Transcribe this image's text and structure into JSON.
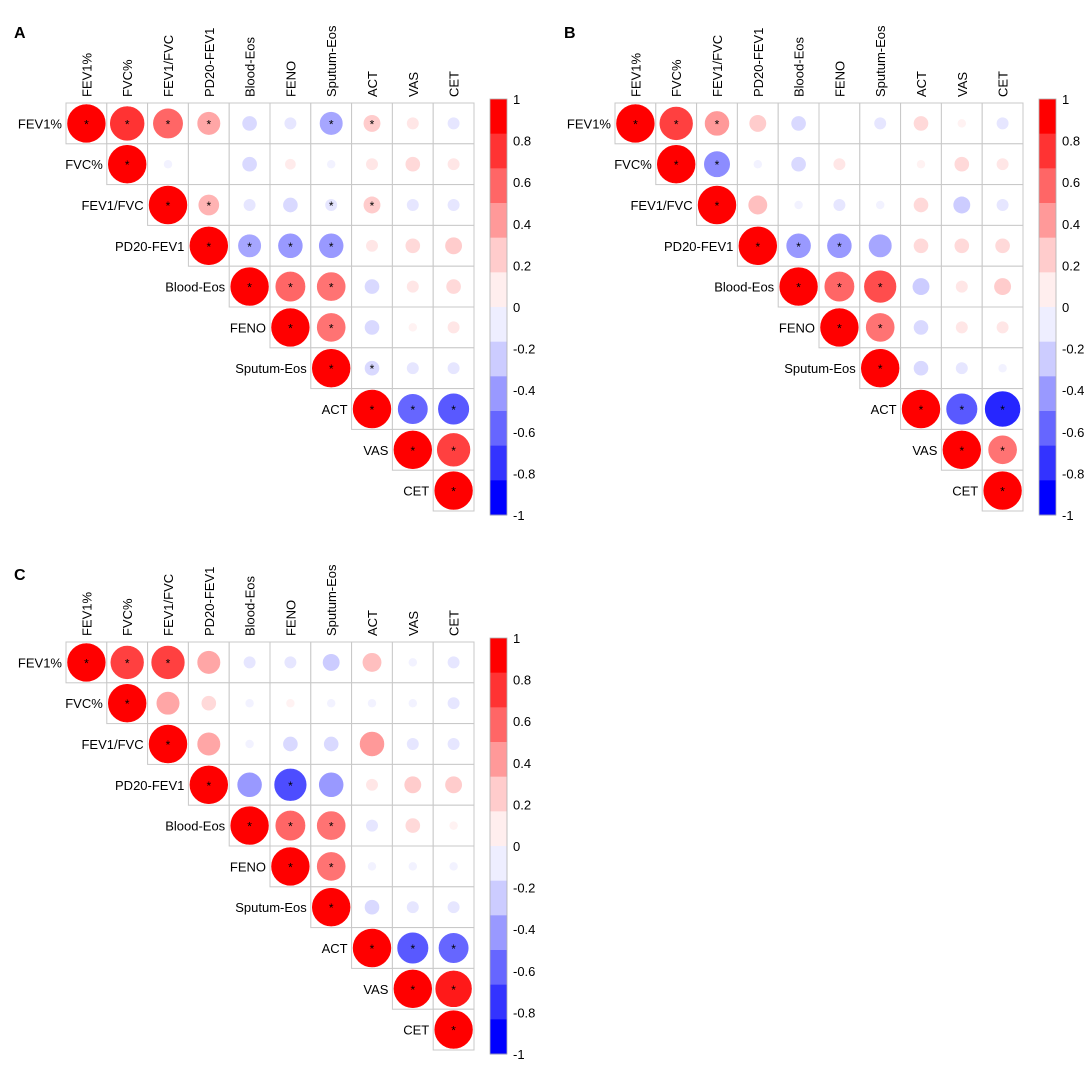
{
  "chart_data": [
    {
      "type": "heatmap",
      "panel": "A",
      "variables": [
        "FEV1%",
        "FVC%",
        "FEV1/FVC",
        "PD20-FEV1",
        "Blood-Eos",
        "FENO",
        "Sputum-Eos",
        "ACT",
        "VAS",
        "CET"
      ],
      "matrix_upper": [
        [
          1.0,
          0.8,
          0.6,
          0.35,
          -0.15,
          -0.1,
          -0.35,
          0.2,
          0.1,
          -0.1
        ],
        [
          null,
          1.0,
          -0.05,
          0.0,
          -0.15,
          0.08,
          -0.05,
          0.1,
          0.15,
          0.1
        ],
        [
          null,
          null,
          1.0,
          0.3,
          -0.1,
          -0.15,
          -0.1,
          0.2,
          -0.1,
          -0.1
        ],
        [
          null,
          null,
          null,
          1.0,
          -0.35,
          -0.4,
          -0.4,
          0.1,
          0.15,
          0.2
        ],
        [
          null,
          null,
          null,
          null,
          1.0,
          0.6,
          0.55,
          -0.15,
          0.1,
          0.15
        ],
        [
          null,
          null,
          null,
          null,
          null,
          1.0,
          0.55,
          -0.15,
          0.05,
          0.1
        ],
        [
          null,
          null,
          null,
          null,
          null,
          null,
          1.0,
          -0.15,
          -0.1,
          -0.1
        ],
        [
          null,
          null,
          null,
          null,
          null,
          null,
          null,
          1.0,
          -0.6,
          -0.65
        ],
        [
          null,
          null,
          null,
          null,
          null,
          null,
          null,
          null,
          1.0,
          0.75
        ],
        [
          null,
          null,
          null,
          null,
          null,
          null,
          null,
          null,
          null,
          1.0
        ]
      ],
      "significant": [
        [
          0,
          0
        ],
        [
          0,
          1
        ],
        [
          0,
          2
        ],
        [
          0,
          3
        ],
        [
          0,
          6
        ],
        [
          0,
          7
        ],
        [
          1,
          1
        ],
        [
          2,
          2
        ],
        [
          2,
          3
        ],
        [
          2,
          6
        ],
        [
          2,
          7
        ],
        [
          3,
          3
        ],
        [
          3,
          4
        ],
        [
          3,
          5
        ],
        [
          3,
          6
        ],
        [
          4,
          4
        ],
        [
          4,
          5
        ],
        [
          4,
          6
        ],
        [
          5,
          5
        ],
        [
          5,
          6
        ],
        [
          6,
          6
        ],
        [
          6,
          7
        ],
        [
          7,
          7
        ],
        [
          7,
          8
        ],
        [
          7,
          9
        ],
        [
          8,
          8
        ],
        [
          8,
          9
        ],
        [
          9,
          9
        ]
      ],
      "legend_ticks": [
        "1",
        "0.8",
        "0.6",
        "0.4",
        "0.2",
        "0",
        "-0.2",
        "-0.4",
        "-0.6",
        "-0.8",
        "-1"
      ],
      "range": [
        -1,
        1
      ]
    },
    {
      "type": "heatmap",
      "panel": "B",
      "variables": [
        "FEV1%",
        "FVC%",
        "FEV1/FVC",
        "PD20-FEV1",
        "Blood-Eos",
        "FENO",
        "Sputum-Eos",
        "ACT",
        "VAS",
        "CET"
      ],
      "matrix_upper": [
        [
          1.0,
          0.75,
          0.4,
          0.2,
          -0.15,
          0.0,
          -0.1,
          0.15,
          0.05,
          -0.1
        ],
        [
          null,
          1.0,
          -0.45,
          -0.05,
          -0.15,
          0.1,
          0.0,
          0.05,
          0.15,
          0.1
        ],
        [
          null,
          null,
          1.0,
          0.25,
          -0.05,
          -0.1,
          -0.05,
          0.15,
          -0.2,
          -0.1
        ],
        [
          null,
          null,
          null,
          1.0,
          -0.4,
          -0.4,
          -0.35,
          0.15,
          0.15,
          0.15
        ],
        [
          null,
          null,
          null,
          null,
          1.0,
          0.6,
          0.7,
          -0.2,
          0.1,
          0.2
        ],
        [
          null,
          null,
          null,
          null,
          null,
          1.0,
          0.55,
          -0.15,
          0.1,
          0.1
        ],
        [
          null,
          null,
          null,
          null,
          null,
          null,
          1.0,
          -0.15,
          -0.1,
          -0.05
        ],
        [
          null,
          null,
          null,
          null,
          null,
          null,
          null,
          1.0,
          -0.65,
          -0.85
        ],
        [
          null,
          null,
          null,
          null,
          null,
          null,
          null,
          null,
          1.0,
          0.55
        ],
        [
          null,
          null,
          null,
          null,
          null,
          null,
          null,
          null,
          null,
          1.0
        ]
      ],
      "significant": [
        [
          0,
          0
        ],
        [
          0,
          1
        ],
        [
          0,
          2
        ],
        [
          1,
          1
        ],
        [
          1,
          2
        ],
        [
          2,
          2
        ],
        [
          3,
          3
        ],
        [
          3,
          4
        ],
        [
          3,
          5
        ],
        [
          4,
          4
        ],
        [
          4,
          5
        ],
        [
          4,
          6
        ],
        [
          5,
          5
        ],
        [
          5,
          6
        ],
        [
          6,
          6
        ],
        [
          7,
          7
        ],
        [
          7,
          8
        ],
        [
          7,
          9
        ],
        [
          8,
          8
        ],
        [
          8,
          9
        ],
        [
          9,
          9
        ]
      ],
      "legend_ticks": [
        "1",
        "0.8",
        "0.6",
        "0.4",
        "0.2",
        "0",
        "-0.2",
        "-0.4",
        "-0.6",
        "-0.8",
        "-1"
      ],
      "range": [
        -1,
        1
      ]
    },
    {
      "type": "heatmap",
      "panel": "C",
      "variables": [
        "FEV1%",
        "FVC%",
        "FEV1/FVC",
        "PD20-FEV1",
        "Blood-Eos",
        "FENO",
        "Sputum-Eos",
        "ACT",
        "VAS",
        "CET"
      ],
      "matrix_upper": [
        [
          1.0,
          0.75,
          0.75,
          0.35,
          -0.1,
          -0.1,
          -0.2,
          0.25,
          -0.05,
          -0.1
        ],
        [
          null,
          1.0,
          0.35,
          0.15,
          -0.05,
          0.05,
          -0.05,
          -0.05,
          -0.05,
          -0.1
        ],
        [
          null,
          null,
          1.0,
          0.35,
          -0.05,
          -0.15,
          -0.15,
          0.4,
          -0.1,
          -0.1
        ],
        [
          null,
          null,
          null,
          1.0,
          -0.4,
          -0.7,
          -0.4,
          0.1,
          0.2,
          0.2
        ],
        [
          null,
          null,
          null,
          null,
          1.0,
          0.6,
          0.55,
          -0.1,
          0.15,
          0.05
        ],
        [
          null,
          null,
          null,
          null,
          null,
          1.0,
          0.55,
          -0.05,
          -0.05,
          -0.05
        ],
        [
          null,
          null,
          null,
          null,
          null,
          null,
          1.0,
          -0.15,
          -0.1,
          -0.1
        ],
        [
          null,
          null,
          null,
          null,
          null,
          null,
          null,
          1.0,
          -0.65,
          -0.6
        ],
        [
          null,
          null,
          null,
          null,
          null,
          null,
          null,
          null,
          1.0,
          0.9
        ],
        [
          null,
          null,
          null,
          null,
          null,
          null,
          null,
          null,
          null,
          1.0
        ]
      ],
      "significant": [
        [
          0,
          0
        ],
        [
          0,
          1
        ],
        [
          0,
          2
        ],
        [
          1,
          1
        ],
        [
          2,
          2
        ],
        [
          3,
          3
        ],
        [
          3,
          5
        ],
        [
          4,
          4
        ],
        [
          4,
          5
        ],
        [
          4,
          6
        ],
        [
          5,
          5
        ],
        [
          5,
          6
        ],
        [
          6,
          6
        ],
        [
          7,
          7
        ],
        [
          7,
          8
        ],
        [
          7,
          9
        ],
        [
          8,
          8
        ],
        [
          8,
          9
        ],
        [
          9,
          9
        ]
      ],
      "legend_ticks": [
        "1",
        "0.8",
        "0.6",
        "0.4",
        "0.2",
        "0",
        "-0.2",
        "-0.4",
        "-0.6",
        "-0.8",
        "-1"
      ],
      "range": [
        -1,
        1
      ]
    }
  ]
}
